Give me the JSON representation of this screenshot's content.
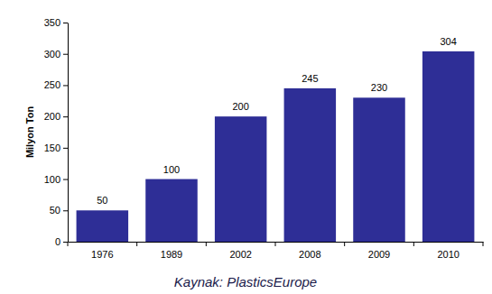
{
  "chart_data": {
    "type": "bar",
    "y_label": "Milyon Ton",
    "caption": "Kaynak: PlasticsEurope",
    "categories": [
      "1976",
      "1989",
      "2002",
      "2008",
      "2009",
      "2010"
    ],
    "values": [
      50,
      100,
      200,
      245,
      230,
      304
    ],
    "color": "#2e2e96",
    "ylim": [
      0,
      350
    ],
    "yticks": [
      0,
      50,
      100,
      150,
      200,
      250,
      300,
      350
    ],
    "grid": false,
    "data_labels": true
  }
}
